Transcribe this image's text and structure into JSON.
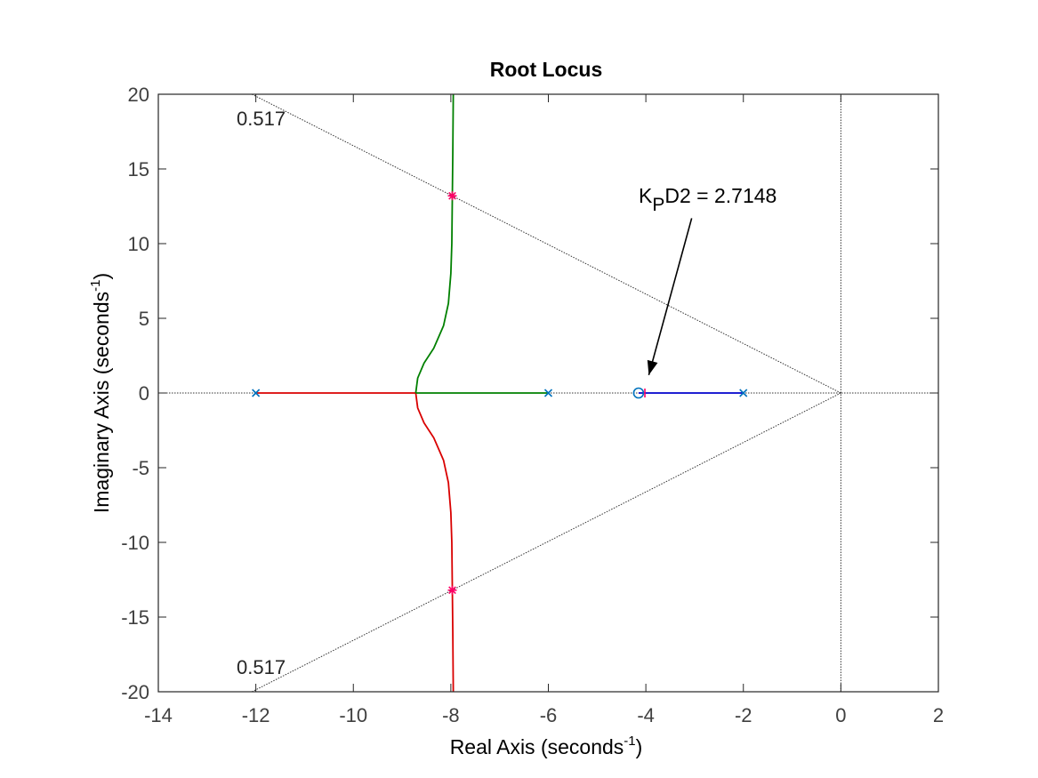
{
  "chart_data": {
    "type": "scatter",
    "title": "Root Locus",
    "xlabel": {
      "main": "Real Axis (seconds",
      "sup": "-1",
      "close": ")"
    },
    "ylabel": {
      "main": "Imaginary Axis (seconds",
      "sup": "-1",
      "close": ")"
    },
    "xlim": [
      -14,
      2
    ],
    "ylim": [
      -20,
      20
    ],
    "xticks": [
      -14,
      -12,
      -10,
      -8,
      -6,
      -4,
      -2,
      0,
      2
    ],
    "yticks": [
      -20,
      -15,
      -10,
      -5,
      0,
      5,
      10,
      15,
      20
    ],
    "grid": false,
    "damping_line_label": "0.517",
    "damping_ratio": 0.517,
    "poles": [
      {
        "x": -12,
        "y": 0
      },
      {
        "x": -6,
        "y": 0
      },
      {
        "x": -2,
        "y": 0
      }
    ],
    "zeros": [
      {
        "x": -4.15,
        "y": 0
      }
    ],
    "closed_loop_poles": [
      {
        "x": -7.97,
        "y": 13.2
      },
      {
        "x": -7.97,
        "y": -13.2
      },
      {
        "x": -4.02,
        "y": 0
      }
    ],
    "series": [
      {
        "color": "#d90000",
        "points": [
          [
            -12,
            0
          ],
          [
            -8.72,
            0
          ]
        ]
      },
      {
        "color": "#d90000",
        "points": [
          [
            -8.72,
            0
          ],
          [
            -8.68,
            -1
          ],
          [
            -8.55,
            -2
          ],
          [
            -8.35,
            -3
          ],
          [
            -8.15,
            -4.5
          ],
          [
            -8.05,
            -6
          ],
          [
            -8.0,
            -8
          ],
          [
            -7.98,
            -10
          ],
          [
            -7.97,
            -13
          ],
          [
            -7.96,
            -16
          ],
          [
            -7.95,
            -20
          ]
        ]
      },
      {
        "color": "#008000",
        "points": [
          [
            -6,
            0
          ],
          [
            -8.72,
            0
          ]
        ]
      },
      {
        "color": "#008000",
        "points": [
          [
            -8.72,
            0
          ],
          [
            -8.68,
            1
          ],
          [
            -8.55,
            2
          ],
          [
            -8.35,
            3
          ],
          [
            -8.15,
            4.5
          ],
          [
            -8.05,
            6
          ],
          [
            -8.0,
            8
          ],
          [
            -7.98,
            10
          ],
          [
            -7.97,
            13
          ],
          [
            -7.96,
            16
          ],
          [
            -7.95,
            20
          ]
        ]
      },
      {
        "color": "#0000cc",
        "points": [
          [
            -2,
            0
          ],
          [
            -4.15,
            0
          ]
        ]
      }
    ],
    "annotation": {
      "text_k": "K",
      "text_sub": "P",
      "text_rest": "D2 = 2.7148",
      "arrow_from": [
        -3.06,
        11.7
      ],
      "arrow_to": [
        -3.94,
        1.2
      ]
    },
    "colors": {
      "axes": "#262626",
      "pole_zero": "#0072bd",
      "closed_loop_marker": "#ff0066",
      "grid_lines": "#333333"
    }
  }
}
